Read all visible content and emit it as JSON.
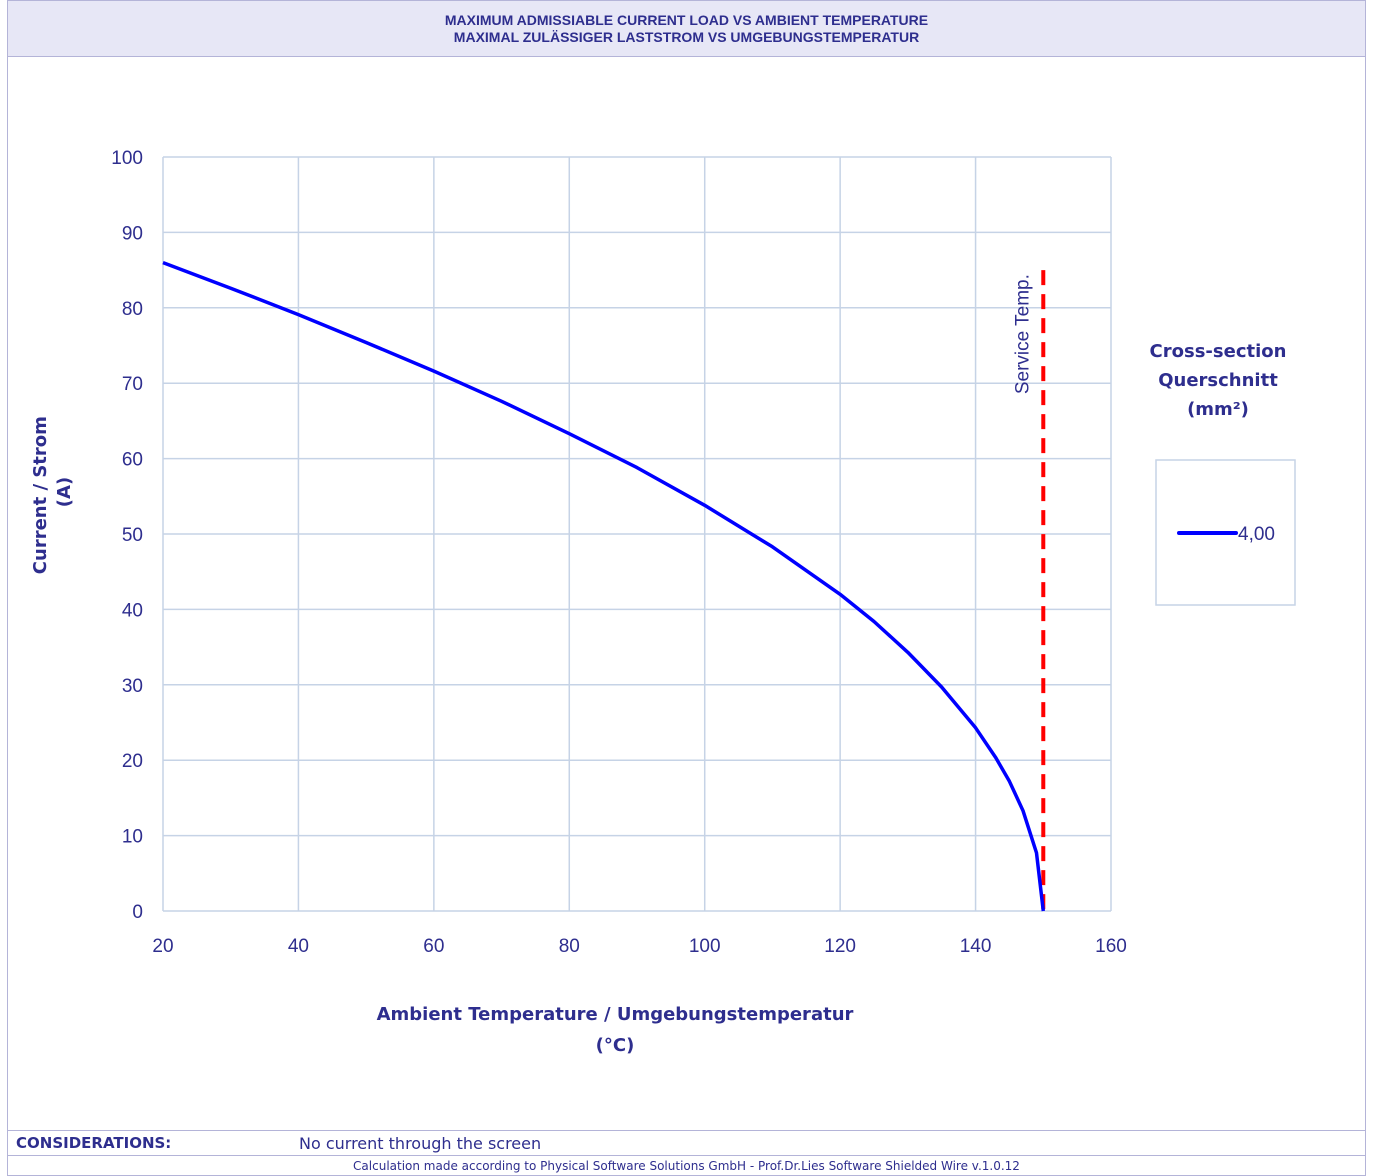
{
  "header": {
    "title_en": "MAXIMUM ADMISSIABLE CURRENT LOAD VS AMBIENT TEMPERATURE",
    "title_de": "MAXIMAL ZULÄSSIGER LASTSTROM VS UMGEBUNGSTEMPERATUR"
  },
  "chart_data": {
    "type": "line",
    "xlabel": "Ambient Temperature / Umgebungstemperatur",
    "xunit": "(°C)",
    "ylabel": "Current / Strom",
    "yunit": "(A)",
    "xlim": [
      20,
      160
    ],
    "ylim": [
      0,
      100
    ],
    "xticks": [
      20,
      40,
      60,
      80,
      100,
      120,
      140,
      160
    ],
    "yticks": [
      0,
      10,
      20,
      30,
      40,
      50,
      60,
      70,
      80,
      90,
      100
    ],
    "grid": true,
    "legend": {
      "title_lines": [
        "Cross-section",
        "Querschnitt",
        "(mm²)"
      ],
      "placement": "right"
    },
    "series": [
      {
        "name": "4,00",
        "color": "#0000ff",
        "x": [
          20,
          30,
          40,
          50,
          60,
          70,
          80,
          90,
          100,
          110,
          120,
          125,
          130,
          135,
          140,
          143,
          145,
          147,
          149,
          150
        ],
        "y": [
          86.0,
          82.6,
          79.1,
          75.4,
          71.6,
          67.6,
          63.3,
          58.8,
          53.8,
          48.3,
          42.0,
          38.4,
          34.3,
          29.7,
          24.3,
          20.3,
          17.2,
          13.3,
          7.7,
          0.0
        ]
      }
    ],
    "annotations": [
      {
        "type": "vertical-line",
        "x": 150,
        "y_top": 85,
        "style": "dashed",
        "color": "#ff0000",
        "label": "Service Temp."
      }
    ]
  },
  "footer": {
    "considerations_label": "CONSIDERATIONS:",
    "considerations_text": "No current through the screen",
    "credit": "Calculation made according to Physical Software Solutions GmbH - Prof.Dr.Lies Software Shielded Wire v.1.0.12"
  }
}
